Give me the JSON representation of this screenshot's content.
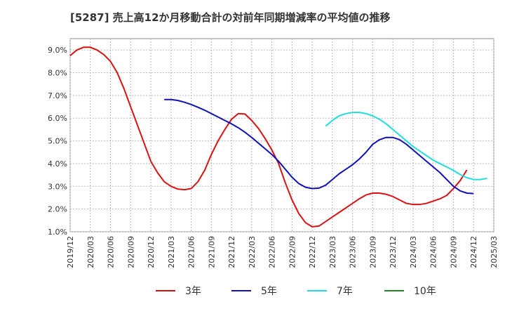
{
  "chart_data": {
    "type": "line",
    "title": "[5287]  売上高12か月移動合計の対前年同期増減率の平均値の推移",
    "xlabel": "",
    "ylabel": "",
    "ylim": [
      1.0,
      9.5
    ],
    "x_tick_labels": [
      "2019/12",
      "2020/03",
      "2020/06",
      "2020/09",
      "2020/12",
      "2021/03",
      "2021/06",
      "2021/09",
      "2021/12",
      "2022/03",
      "2022/06",
      "2022/09",
      "2022/12",
      "2023/03",
      "2023/06",
      "2023/09",
      "2023/12",
      "2024/03",
      "2024/06",
      "2024/09",
      "2024/12",
      "2025/03"
    ],
    "y_tick_labels": [
      "1.0%",
      "2.0%",
      "3.0%",
      "4.0%",
      "5.0%",
      "6.0%",
      "7.0%",
      "8.0%",
      "9.0%"
    ],
    "y_tick_values": [
      1,
      2,
      3,
      4,
      5,
      6,
      7,
      8,
      9
    ],
    "grid": true,
    "legend_position": "bottom",
    "series": [
      {
        "name": "3年",
        "color": "#dd1111",
        "start_index": 0,
        "values": [
          8.75,
          9.0,
          9.12,
          9.12,
          9.0,
          8.8,
          8.5,
          8.0,
          7.3,
          6.5,
          5.7,
          4.9,
          4.1,
          3.6,
          3.2,
          3.0,
          2.88,
          2.85,
          2.9,
          3.2,
          3.7,
          4.4,
          5.0,
          5.5,
          5.95,
          6.2,
          6.18,
          5.9,
          5.55,
          5.1,
          4.6,
          4.0,
          3.15,
          2.4,
          1.8,
          1.4,
          1.22,
          1.25,
          1.45,
          1.65,
          1.85,
          2.05,
          2.25,
          2.45,
          2.62,
          2.7,
          2.7,
          2.65,
          2.55,
          2.4,
          2.25,
          2.2,
          2.2,
          2.25,
          2.35,
          2.45,
          2.6,
          2.9,
          3.25,
          3.72
        ]
      },
      {
        "name": "5年",
        "color": "#1111bb",
        "start_index": 14,
        "values": [
          6.82,
          6.82,
          6.78,
          6.7,
          6.6,
          6.48,
          6.35,
          6.2,
          6.05,
          5.9,
          5.75,
          5.58,
          5.38,
          5.15,
          4.9,
          4.65,
          4.4,
          4.1,
          3.75,
          3.4,
          3.12,
          2.96,
          2.9,
          2.92,
          3.05,
          3.3,
          3.55,
          3.75,
          3.95,
          4.2,
          4.5,
          4.85,
          5.05,
          5.15,
          5.15,
          5.05,
          4.85,
          4.6,
          4.35,
          4.1,
          3.85,
          3.6,
          3.3,
          3.0,
          2.8,
          2.7,
          2.68
        ]
      },
      {
        "name": "7年",
        "color": "#22dddd",
        "start_index": 38,
        "values": [
          5.65,
          5.9,
          6.1,
          6.2,
          6.25,
          6.25,
          6.2,
          6.1,
          5.95,
          5.75,
          5.5,
          5.25,
          5.0,
          4.75,
          4.55,
          4.35,
          4.15,
          4.0,
          3.85,
          3.7,
          3.52,
          3.38,
          3.3,
          3.3,
          3.35
        ]
      },
      {
        "name": "10年",
        "color": "#228822",
        "start_index": 0,
        "values": []
      }
    ]
  }
}
